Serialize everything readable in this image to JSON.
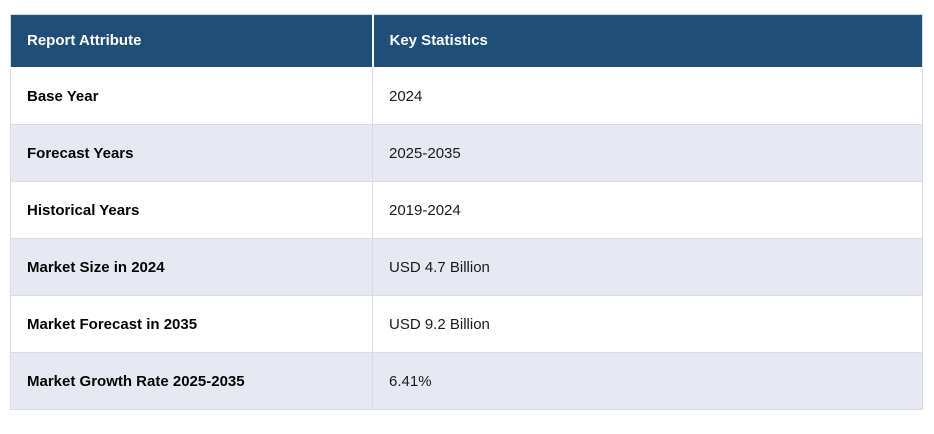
{
  "page": {
    "background": "#ffffff"
  },
  "colors": {
    "header_bg": "#1f4e79",
    "header_text": "#ffffff",
    "stripe_bg": "#e7e9f2",
    "row_bg": "#ffffff",
    "border": "#d9dce3",
    "attribute_text": "#050505",
    "value_text": "#1a1a1a"
  },
  "table": {
    "columns": [
      "Report Attribute",
      "Key Statistics"
    ],
    "rows": [
      {
        "attribute": "Base Year",
        "value": "2024"
      },
      {
        "attribute": "Forecast Years",
        "value": "2025-2035"
      },
      {
        "attribute": "Historical Years",
        "value": "2019-2024"
      },
      {
        "attribute": "Market Size in 2024",
        "value": "USD 4.7 Billion"
      },
      {
        "attribute": "Market Forecast in 2035",
        "value": "USD 9.2 Billion"
      },
      {
        "attribute": "Market Growth Rate 2025-2035",
        "value": "6.41%"
      }
    ]
  },
  "chart_data": {
    "type": "table",
    "title": "",
    "columns": [
      "Report Attribute",
      "Key Statistics"
    ],
    "rows": [
      [
        "Base Year",
        "2024"
      ],
      [
        "Forecast Years",
        "2025-2035"
      ],
      [
        "Historical Years",
        "2019-2024"
      ],
      [
        "Market Size in 2024",
        "USD 4.7 Billion"
      ],
      [
        "Market Forecast in 2035",
        "USD 9.2 Billion"
      ],
      [
        "Market Growth Rate 2025-2035",
        "6.41%"
      ]
    ],
    "layout_hints": {
      "header_style": "dark-navy background, white bold text",
      "zebra_striping": "odd rows white, even rows light lavender",
      "first_column_bold": true
    }
  }
}
